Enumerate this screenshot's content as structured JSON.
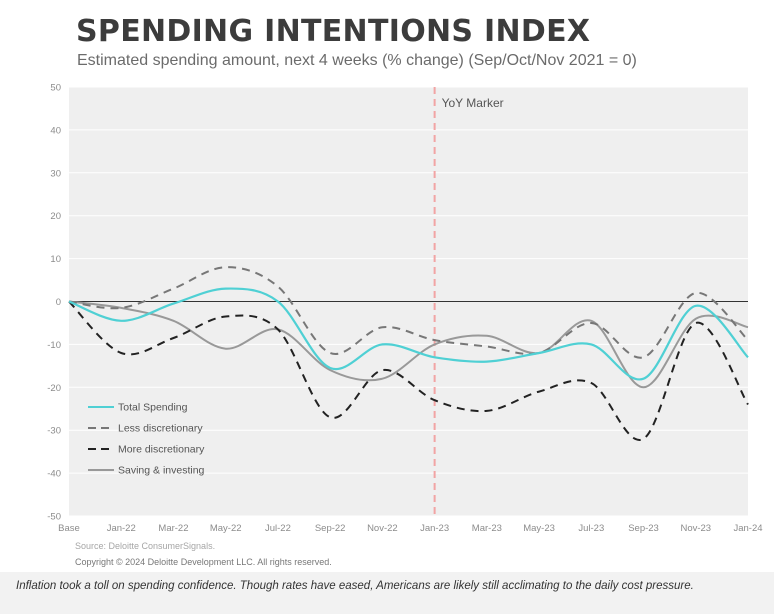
{
  "colors": {
    "total": "#4fd0d4",
    "less": "#777777",
    "more": "#222222",
    "saving": "#999999",
    "marker": "#f2a4a4",
    "plot_bg": "#efefef"
  },
  "chart_data": {
    "type": "line",
    "title": "SPENDING INTENTIONS INDEX",
    "subtitle": "Estimated spending amount, next 4 weeks (% change) (Sep/Oct/Nov 2021 = 0)",
    "x_tick_labels": [
      "Base",
      "Jan-22",
      "Mar-22",
      "May-22",
      "Jul-22",
      "Sep-22",
      "Nov-22",
      "Jan-23",
      "Mar-23",
      "May-23",
      "Jul-23",
      "Sep-23",
      "Nov-23",
      "Jan-24"
    ],
    "ylim": [
      -50,
      50
    ],
    "y_ticks": [
      50,
      40,
      30,
      20,
      10,
      0,
      -10,
      -20,
      -30,
      -40,
      -50
    ],
    "grid": true,
    "legend_position": "bottom-left",
    "annotation": "YoY Marker",
    "annotation_x_label": "Jan-23",
    "series": [
      {
        "name": "Total Spending",
        "key": "total",
        "style": "solid",
        "x": [
          "Base",
          "Jan-22",
          "Mar-22",
          "May-22",
          "Jul-22",
          "Sep-22",
          "Nov-22",
          "Jan-23",
          "Mar-23",
          "May-23",
          "Jul-23",
          "Sep-23",
          "Nov-23",
          "Jan-24"
        ],
        "y": [
          0,
          -4.5,
          -0.5,
          3,
          0,
          -15.5,
          -10,
          -13,
          -14,
          -12,
          -10,
          -18,
          -1,
          -13
        ]
      },
      {
        "name": "Less discretionary",
        "key": "less",
        "style": "dashed",
        "x": [
          "Base",
          "Jan-22",
          "Mar-22",
          "May-22",
          "Jul-22",
          "Sep-22",
          "Nov-22",
          "Jan-23",
          "Mar-23",
          "May-23",
          "Jul-23",
          "Sep-23",
          "Nov-23",
          "Jan-24"
        ],
        "y": [
          0,
          -1.5,
          3,
          8,
          3.5,
          -12,
          -6,
          -9,
          -10.5,
          -12,
          -5,
          -13,
          2,
          -9
        ]
      },
      {
        "name": "More discretionary",
        "key": "more",
        "style": "dashed",
        "x": [
          "Base",
          "Jan-22",
          "Mar-22",
          "May-22",
          "Jul-22",
          "Sep-22",
          "Nov-22",
          "Jan-23",
          "Mar-23",
          "May-23",
          "Jul-23",
          "Sep-23",
          "Nov-23",
          "Jan-24"
        ],
        "y": [
          0,
          -12,
          -8.5,
          -3.5,
          -6.5,
          -27,
          -16,
          -23,
          -25.5,
          -21,
          -19,
          -32,
          -5,
          -24
        ]
      },
      {
        "name": "Saving & investing",
        "key": "saving",
        "style": "solid",
        "x": [
          "Base",
          "Jan-22",
          "Mar-22",
          "May-22",
          "Jul-22",
          "Sep-22",
          "Nov-22",
          "Jan-23",
          "Mar-23",
          "May-23",
          "Jul-23",
          "Sep-23",
          "Nov-23",
          "Jan-24"
        ],
        "y": [
          0,
          -1.5,
          -4.5,
          -11,
          -6.5,
          -16,
          -18,
          -10,
          -8,
          -12,
          -4.5,
          -20,
          -4,
          -6
        ]
      }
    ]
  },
  "source": "Source: Deloitte ConsumerSignals.",
  "copyright": "Copyright © 2024 Deloitte Development LLC. All rights reserved.",
  "caption": "Inflation took a toll on spending confidence. Though rates have eased, Americans are likely still acclimating to the daily cost pressure."
}
